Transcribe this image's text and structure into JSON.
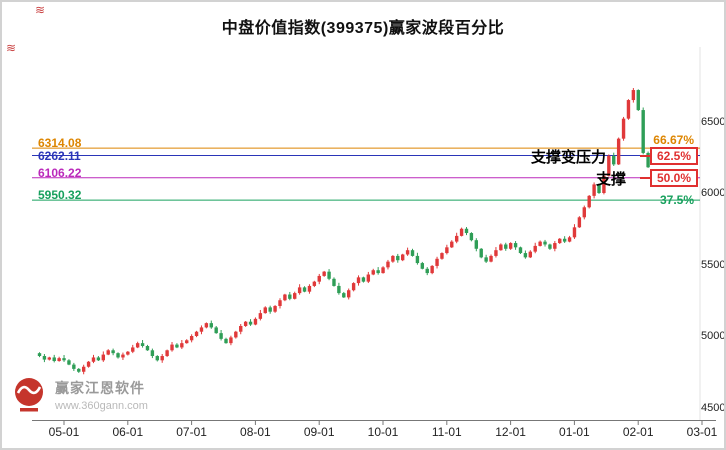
{
  "watermark": {
    "brand": "赢家江恩软件",
    "url": "www.360gann.com"
  },
  "chart_data": {
    "type": "candlestick",
    "title": "中盘价值指数(399375)赢家波段百分比",
    "x_tick_labels": [
      "05-01",
      "06-01",
      "07-01",
      "08-01",
      "09-01",
      "10-01",
      "11-01",
      "12-01",
      "01-01",
      "02-01",
      "03-01"
    ],
    "y_ticks": [
      6500,
      6000,
      5500,
      5000,
      4500
    ],
    "y_axis": {
      "min": 4413,
      "max": 7000,
      "grid": false
    },
    "levels": [
      {
        "value": 6314.08,
        "value_label": "6314.08",
        "pct_label": "66.67%",
        "color": "#dd8500",
        "boxed": false
      },
      {
        "value": 6262.11,
        "value_label": "6262.11",
        "pct_label": "62.5%",
        "color": "#2a35b8",
        "boxed": true
      },
      {
        "value": 6106.22,
        "value_label": "6106.22",
        "pct_label": "50.0%",
        "color": "#bb29bb",
        "boxed": true
      },
      {
        "value": 5950.32,
        "value_label": "5950.32",
        "pct_label": "37.5%",
        "color": "#17a05d",
        "boxed": false
      }
    ],
    "annotations": [
      {
        "text": "支撑变压力",
        "level_index": 1
      },
      {
        "text": "支撑",
        "level_index": 2
      }
    ],
    "candles": {
      "first_open": 4880,
      "closes": [
        4860,
        4835,
        4850,
        4825,
        4845,
        4830,
        4800,
        4770,
        4750,
        4785,
        4820,
        4850,
        4830,
        4870,
        4900,
        4880,
        4850,
        4870,
        4890,
        4920,
        4950,
        4930,
        4900,
        4860,
        4830,
        4860,
        4900,
        4940,
        4920,
        4950,
        4970,
        5000,
        5030,
        5060,
        5090,
        5060,
        5020,
        4980,
        4950,
        4990,
        5030,
        5070,
        5100,
        5080,
        5120,
        5160,
        5200,
        5170,
        5210,
        5250,
        5290,
        5260,
        5300,
        5340,
        5310,
        5350,
        5380,
        5420,
        5450,
        5400,
        5350,
        5300,
        5270,
        5320,
        5370,
        5410,
        5380,
        5430,
        5460,
        5440,
        5480,
        5520,
        5560,
        5530,
        5570,
        5600,
        5560,
        5510,
        5470,
        5440,
        5490,
        5540,
        5580,
        5620,
        5660,
        5700,
        5750,
        5720,
        5670,
        5610,
        5550,
        5520,
        5560,
        5600,
        5640,
        5610,
        5650,
        5620,
        5580,
        5550,
        5590,
        5630,
        5660,
        5640,
        5610,
        5650,
        5680,
        5660,
        5690,
        5760,
        5830,
        5900,
        5980,
        6060,
        6000,
        6120,
        6260,
        6200,
        6380,
        6520,
        6650,
        6720,
        6580,
        6280,
        6180
      ]
    },
    "colors": {
      "up": "#e0393a",
      "down": "#2f9e57",
      "box": "#e03030",
      "axis": "#777777"
    }
  }
}
